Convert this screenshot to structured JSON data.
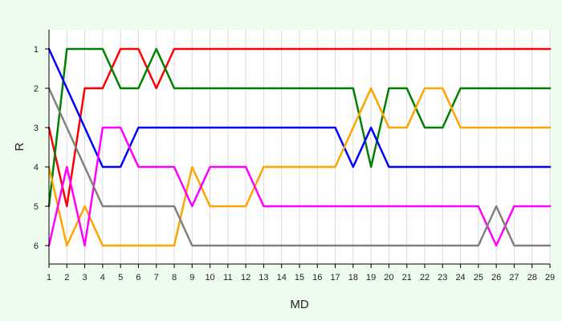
{
  "chart_data": {
    "type": "line",
    "title": "",
    "xlabel": "MD",
    "ylabel": "R",
    "x": [
      1,
      2,
      3,
      4,
      5,
      6,
      7,
      8,
      9,
      10,
      11,
      12,
      13,
      14,
      15,
      16,
      17,
      18,
      19,
      20,
      21,
      22,
      23,
      24,
      25,
      26,
      27,
      28,
      29
    ],
    "xlim": [
      1,
      29
    ],
    "ylim": [
      1,
      6
    ],
    "y_inverted": true,
    "yticks": [
      1,
      2,
      3,
      4,
      5,
      6
    ],
    "grid": {
      "vertical": true,
      "horizontal": false
    },
    "legend": "none",
    "series": [
      {
        "color": "#ff0000",
        "values": [
          3,
          5,
          2,
          2,
          1,
          1,
          2,
          1,
          1,
          1,
          1,
          1,
          1,
          1,
          1,
          1,
          1,
          1,
          1,
          1,
          1,
          1,
          1,
          1,
          1,
          1,
          1,
          1,
          1
        ]
      },
      {
        "color": "#008000",
        "values": [
          5,
          1,
          1,
          1,
          2,
          2,
          1,
          2,
          2,
          2,
          2,
          2,
          2,
          2,
          2,
          2,
          2,
          2,
          4,
          2,
          2,
          3,
          3,
          2,
          2,
          2,
          2,
          2,
          2
        ]
      },
      {
        "color": "#0000ff",
        "values": [
          1,
          2,
          3,
          4,
          4,
          3,
          3,
          3,
          3,
          3,
          3,
          3,
          3,
          3,
          3,
          3,
          3,
          4,
          3,
          4,
          4,
          4,
          4,
          4,
          4,
          4,
          4,
          4,
          4
        ]
      },
      {
        "color": "#ffa500",
        "values": [
          4,
          6,
          5,
          6,
          6,
          6,
          6,
          6,
          4,
          5,
          5,
          5,
          4,
          4,
          4,
          4,
          4,
          3,
          2,
          3,
          3,
          2,
          2,
          3,
          3,
          3,
          3,
          3,
          3
        ]
      },
      {
        "color": "#ff00ff",
        "values": [
          6,
          4,
          6,
          3,
          3,
          4,
          4,
          4,
          5,
          4,
          4,
          4,
          5,
          5,
          5,
          5,
          5,
          5,
          5,
          5,
          5,
          5,
          5,
          5,
          5,
          6,
          5,
          5,
          5
        ]
      },
      {
        "color": "#808080",
        "values": [
          2,
          3,
          4,
          5,
          5,
          5,
          5,
          5,
          6,
          6,
          6,
          6,
          6,
          6,
          6,
          6,
          6,
          6,
          6,
          6,
          6,
          6,
          6,
          6,
          6,
          5,
          6,
          6,
          6
        ]
      }
    ]
  }
}
